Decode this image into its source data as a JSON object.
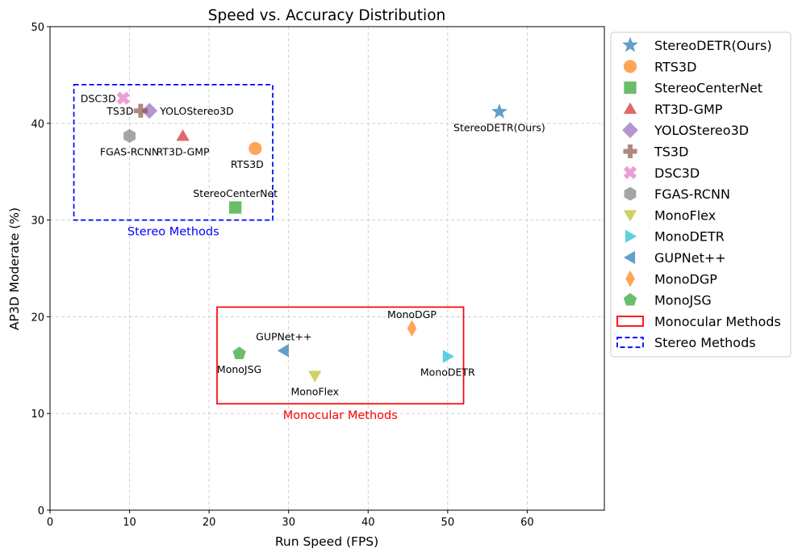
{
  "chart_data": {
    "type": "scatter",
    "title": "Speed vs. Accuracy Distribution",
    "xlabel": "Run Speed (FPS)",
    "ylabel": "AP3D Moderate (%)",
    "xlim": [
      0,
      69.7
    ],
    "ylim": [
      0,
      50
    ],
    "xticks": [
      0,
      10,
      20,
      30,
      40,
      50,
      60
    ],
    "yticks": [
      0,
      10,
      20,
      30,
      40,
      50
    ],
    "grid": true,
    "legend_position": "outside-right",
    "points": [
      {
        "name": "StereoDETR(Ours)",
        "x": 56.5,
        "y": 41.2,
        "marker": "star",
        "color": "#1f77b4",
        "label_pos": "below"
      },
      {
        "name": "RTS3D",
        "x": 25.8,
        "y": 37.4,
        "marker": "circle",
        "color": "#ff7f0e",
        "label_pos": "below-left"
      },
      {
        "name": "StereoCenterNet",
        "x": 23.3,
        "y": 31.3,
        "marker": "square",
        "color": "#2ca02c",
        "label_pos": "above"
      },
      {
        "name": "RT3D-GMP",
        "x": 16.7,
        "y": 38.7,
        "marker": "triangle-up",
        "color": "#d62728",
        "label_pos": "below"
      },
      {
        "name": "YOLOStereo3D",
        "x": 12.5,
        "y": 41.3,
        "marker": "diamond",
        "color": "#9467bd",
        "label_pos": "right"
      },
      {
        "name": "TS3D",
        "x": 11.4,
        "y": 41.3,
        "marker": "plus",
        "color": "#8c564b",
        "label_pos": "left"
      },
      {
        "name": "DSC3D",
        "x": 9.2,
        "y": 42.6,
        "marker": "x",
        "color": "#e377c2",
        "label_pos": "left"
      },
      {
        "name": "FGAS-RCNN",
        "x": 10.0,
        "y": 38.7,
        "marker": "hexagon",
        "color": "#7f7f7f",
        "label_pos": "below"
      },
      {
        "name": "MonoFlex",
        "x": 33.3,
        "y": 13.9,
        "marker": "triangle-down",
        "color": "#bcbd22",
        "label_pos": "below"
      },
      {
        "name": "MonoDETR",
        "x": 50.0,
        "y": 15.9,
        "marker": "triangle-right",
        "color": "#17becf",
        "label_pos": "below"
      },
      {
        "name": "GUPNet++",
        "x": 29.4,
        "y": 16.5,
        "marker": "triangle-left",
        "color": "#1f77b4",
        "label_pos": "above"
      },
      {
        "name": "MonoDGP",
        "x": 45.5,
        "y": 18.8,
        "marker": "thin-diamond",
        "color": "#ff7f0e",
        "label_pos": "above"
      },
      {
        "name": "MonoJSG",
        "x": 23.8,
        "y": 16.2,
        "marker": "pentagon",
        "color": "#2ca02c",
        "label_pos": "below"
      }
    ],
    "regions": [
      {
        "name": "Monocular Methods",
        "x": [
          21,
          52
        ],
        "y": [
          11,
          21
        ],
        "color": "#ff0000",
        "style": "solid"
      },
      {
        "name": "Stereo Methods",
        "x": [
          3,
          28
        ],
        "y": [
          30,
          44
        ],
        "color": "#0000ff",
        "style": "dashed"
      }
    ]
  }
}
